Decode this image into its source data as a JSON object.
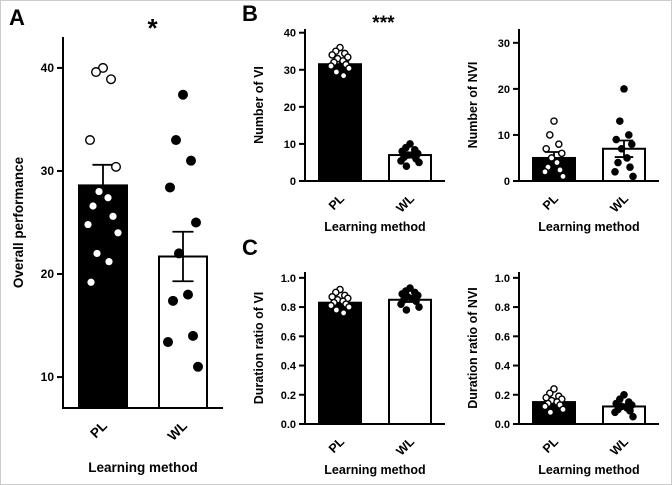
{
  "panels": {
    "a_label": "A",
    "b_label": "B",
    "c_label": "C"
  },
  "chart_data": [
    {
      "type": "bar",
      "panel": "A",
      "ylabel": "Overall performance",
      "xlabel": "Learning method",
      "categories": [
        "PL",
        "WL"
      ],
      "bar_fills": [
        "#000000",
        "#ffffff"
      ],
      "point_styles": [
        "open",
        "filled"
      ],
      "values": [
        28.6,
        21.7
      ],
      "errors": [
        2.0,
        2.4
      ],
      "significance": "*",
      "ylim": [
        7,
        43
      ],
      "ytick_labels": [
        "10",
        "20",
        "30",
        "40"
      ],
      "points": [
        [
          40,
          39.6,
          38.9,
          33,
          30.4,
          28,
          27.4,
          26.6,
          25.6,
          24.8,
          24,
          22,
          21.2,
          19.2
        ],
        [
          37.4,
          33,
          31,
          28.4,
          25,
          22,
          18,
          17.4,
          14,
          13.4,
          11
        ]
      ]
    },
    {
      "type": "bar",
      "panel": "B",
      "ylabel": "Number of VI",
      "xlabel": "Learning method",
      "categories": [
        "PL",
        "WL"
      ],
      "bar_fills": [
        "#000000",
        "#ffffff"
      ],
      "point_styles": [
        "open",
        "filled"
      ],
      "values": [
        31.5,
        7.0
      ],
      "errors": [
        0.9,
        0.7
      ],
      "significance": "***",
      "ylim": [
        0,
        41
      ],
      "ytick_labels": [
        "0",
        "10",
        "20",
        "30",
        "40"
      ],
      "points": [
        [
          36,
          35,
          34.4,
          34,
          33.4,
          33,
          32.4,
          32,
          31.4,
          31,
          30.4,
          29.4,
          28.4
        ],
        [
          10,
          9,
          8.4,
          8,
          7.4,
          7,
          7,
          6.4,
          6,
          5.4,
          5,
          4
        ]
      ]
    },
    {
      "type": "bar",
      "panel": "B",
      "ylabel": "Number of NVI",
      "xlabel": "Learning method",
      "categories": [
        "PL",
        "WL"
      ],
      "bar_fills": [
        "#000000",
        "#ffffff"
      ],
      "point_styles": [
        "open",
        "filled"
      ],
      "values": [
        5.0,
        7.0
      ],
      "errors": [
        1.3,
        1.8
      ],
      "significance": "",
      "ylim": [
        0,
        33
      ],
      "ytick_labels": [
        "0",
        "10",
        "20",
        "30"
      ],
      "points": [
        [
          13,
          10,
          8,
          7,
          6,
          5,
          4,
          3,
          2.4,
          2,
          1
        ],
        [
          20,
          13,
          10,
          9,
          8,
          7,
          5,
          4,
          3,
          2,
          1
        ]
      ]
    },
    {
      "type": "bar",
      "panel": "C",
      "ylabel": "Duration ratio of VI",
      "xlabel": "Learning method",
      "categories": [
        "PL",
        "WL"
      ],
      "bar_fills": [
        "#000000",
        "#ffffff"
      ],
      "point_styles": [
        "open",
        "filled"
      ],
      "values": [
        0.83,
        0.85
      ],
      "errors": [
        0.015,
        0.015
      ],
      "significance": "",
      "ylim": [
        0,
        1.04
      ],
      "ytick_labels": [
        "0.0",
        "0.2",
        "0.4",
        "0.6",
        "0.8",
        "1.0"
      ],
      "points": [
        [
          0.92,
          0.9,
          0.88,
          0.87,
          0.86,
          0.85,
          0.84,
          0.83,
          0.82,
          0.81,
          0.8,
          0.78,
          0.76
        ],
        [
          0.93,
          0.91,
          0.9,
          0.89,
          0.88,
          0.87,
          0.86,
          0.85,
          0.84,
          0.82,
          0.8,
          0.78
        ]
      ]
    },
    {
      "type": "bar",
      "panel": "C",
      "ylabel": "Duration ratio of NVI",
      "xlabel": "Learning method",
      "categories": [
        "PL",
        "WL"
      ],
      "bar_fills": [
        "#000000",
        "#ffffff"
      ],
      "point_styles": [
        "open",
        "filled"
      ],
      "values": [
        0.15,
        0.12
      ],
      "errors": [
        0.02,
        0.015
      ],
      "significance": "",
      "ylim": [
        0,
        1.04
      ],
      "ytick_labels": [
        "0.0",
        "0.2",
        "0.4",
        "0.6",
        "0.8",
        "1.0"
      ],
      "points": [
        [
          0.24,
          0.21,
          0.19,
          0.18,
          0.17,
          0.16,
          0.15,
          0.14,
          0.13,
          0.12,
          0.1,
          0.08
        ],
        [
          0.2,
          0.17,
          0.15,
          0.14,
          0.13,
          0.12,
          0.11,
          0.1,
          0.09,
          0.08,
          0.05
        ]
      ]
    }
  ]
}
